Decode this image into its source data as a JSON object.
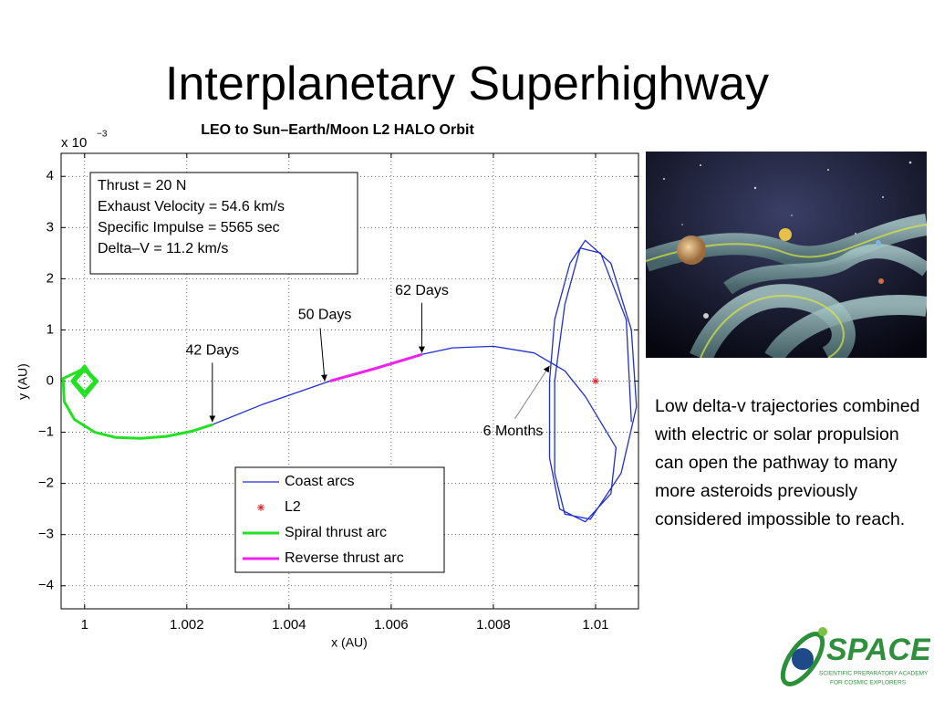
{
  "slide": {
    "title": "Interplanetary Superhighway",
    "body": "Low delta-v trajectories combined with electric or solar propulsion can open the pathway to many more asteroids previously considered impossible to reach.",
    "logo": {
      "name": "SPACE",
      "tagline": [
        "SCIENTIFIC PREPARATORY ACADEMY",
        "FOR COSMIC EXPLORERS"
      ]
    }
  },
  "chart_data": {
    "type": "line",
    "title": "LEO to Sun–Earth/Moon L2 HALO Orbit",
    "x_label": "x (AU)",
    "y_label": "y (AU)",
    "y_scale_label": "x 10",
    "y_scale_exponent": "−3",
    "xlim": [
      0.99954,
      1.01084
    ],
    "ylim": [
      -4.45,
      4.45
    ],
    "xticks": [
      1,
      1.002,
      1.004,
      1.006,
      1.008,
      1.01
    ],
    "yticks": [
      4,
      3,
      2,
      1,
      0,
      {
        "value": -1,
        "label": "−1"
      },
      {
        "value": -2,
        "label": "−2"
      },
      {
        "value": -3,
        "label": "−3"
      },
      {
        "value": -4,
        "label": "−4"
      }
    ],
    "grid": true,
    "legend": "bottom",
    "info_box": [
      "Thrust = 20 N",
      "Exhaust Velocity = 54.6 km/s",
      "Specific Impulse = 5565 sec",
      "Delta–V = 11.2 km/s"
    ],
    "series": [
      {
        "name": "Coast arcs",
        "color": "#1f2fd6",
        "x": [
          1.0025,
          1.0035,
          1.0048,
          null,
          1.0066,
          1.0072,
          1.008,
          1.0088,
          1.0094,
          1.0098,
          1.0104,
          1.0103,
          1.0098,
          1.0093,
          1.0091,
          1.0091,
          1.0092,
          1.0095,
          1.0098,
          1.0103,
          1.0107,
          1.0108,
          1.0105,
          1.0099,
          1.0094,
          1.0092,
          1.0092,
          1.0094,
          1.0097,
          1.0101,
          1.0106,
          1.0107
        ],
        "values": [
          -0.85,
          -0.45,
          0.0,
          null,
          0.52,
          0.65,
          0.68,
          0.55,
          0.2,
          -0.3,
          -1.3,
          -2.2,
          -2.75,
          -2.5,
          -1.5,
          0.0,
          1.2,
          2.3,
          2.75,
          2.3,
          1.0,
          -0.5,
          -1.8,
          -2.7,
          -2.6,
          -1.8,
          0.0,
          1.5,
          2.6,
          2.5,
          1.2,
          -0.8
        ]
      },
      {
        "name": "L2",
        "color": "#e02020",
        "marker": "star",
        "x": [
          1.01
        ],
        "values": [
          0
        ]
      },
      {
        "name": "Spiral thrust arc",
        "color": "#22e022",
        "x": [
          1.0002,
          1.0,
          0.9998,
          1.0,
          1.0002,
          1.0,
          0.99975,
          1.0,
          1.00025,
          1.0,
          0.99958,
          0.9996,
          0.9998,
          1.0002,
          1.0006,
          1.0011,
          1.0016,
          1.0021,
          1.0025
        ],
        "values": [
          0,
          0.22,
          0,
          -0.22,
          0,
          0.3,
          0,
          -0.3,
          0,
          0.25,
          0.05,
          -0.4,
          -0.75,
          -1.0,
          -1.1,
          -1.12,
          -1.08,
          -0.98,
          -0.85
        ]
      },
      {
        "name": "Reverse thrust arc",
        "color": "#ee22ee",
        "x": [
          1.0048,
          1.0057,
          1.0066
        ],
        "values": [
          0.0,
          0.25,
          0.52
        ]
      }
    ],
    "annotations": [
      {
        "text": "42 Days",
        "x": 1.0025,
        "y": -0.8
      },
      {
        "text": "50 Days",
        "x": 1.0047,
        "y": 0.0
      },
      {
        "text": "62 Days",
        "x": 1.0066,
        "y": 0.55
      },
      {
        "text": "6 Months",
        "x": 1.0091,
        "y": 0.3
      }
    ]
  }
}
